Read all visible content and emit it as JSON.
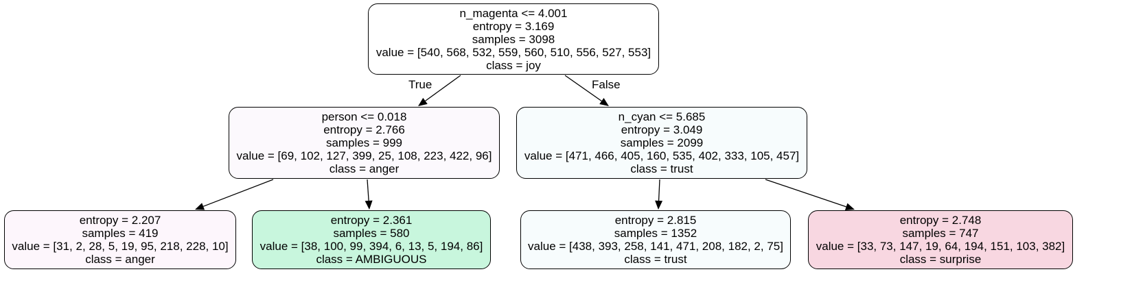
{
  "tree": {
    "nodes": [
      {
        "id": "root",
        "fill": "#ffffff",
        "lines": [
          "n_magenta <= 4.001",
          "entropy = 3.169",
          "samples = 3098",
          "value = [540, 568, 532, 559, 560, 510, 556, 527, 553]",
          "class = joy"
        ]
      },
      {
        "id": "left",
        "fill": "#fcf9fd",
        "lines": [
          "person <= 0.018",
          "entropy = 2.766",
          "samples = 999",
          "value = [69, 102, 127, 399, 25, 108, 223, 422, 96]",
          "class = anger"
        ]
      },
      {
        "id": "right",
        "fill": "#f7fcfd",
        "lines": [
          "n_cyan <= 5.685",
          "entropy = 3.049",
          "samples = 2099",
          "value = [471, 466, 405, 160, 535, 402, 333, 105, 457]",
          "class = trust"
        ]
      },
      {
        "id": "leaf-ll",
        "fill": "#fdf6fc",
        "lines": [
          "entropy = 2.207",
          "samples = 419",
          "value = [31, 2, 28, 5, 19, 95, 218, 228, 10]",
          "class = anger"
        ]
      },
      {
        "id": "leaf-lr",
        "fill": "#c8f6dd",
        "lines": [
          "entropy = 2.361",
          "samples = 580",
          "value = [38, 100, 99, 394, 6, 13, 5, 194, 86]",
          "class = AMBIGUOUS"
        ]
      },
      {
        "id": "leaf-rl",
        "fill": "#f7fcfd",
        "lines": [
          "entropy = 2.815",
          "samples = 1352",
          "value = [438, 393, 258, 141, 471, 208, 182, 2, 75]",
          "class = trust"
        ]
      },
      {
        "id": "leaf-rr",
        "fill": "#f8d7e1",
        "lines": [
          "entropy = 2.748",
          "samples = 747",
          "value = [33, 73, 147, 19, 64, 194, 151, 103, 382]",
          "class = surprise"
        ]
      }
    ],
    "edges": [
      {
        "from": "root",
        "to": "left",
        "label": "True"
      },
      {
        "from": "root",
        "to": "right",
        "label": "False"
      },
      {
        "from": "left",
        "to": "leaf-ll",
        "label": ""
      },
      {
        "from": "left",
        "to": "leaf-lr",
        "label": ""
      },
      {
        "from": "right",
        "to": "leaf-rl",
        "label": ""
      },
      {
        "from": "right",
        "to": "leaf-rr",
        "label": ""
      }
    ]
  }
}
